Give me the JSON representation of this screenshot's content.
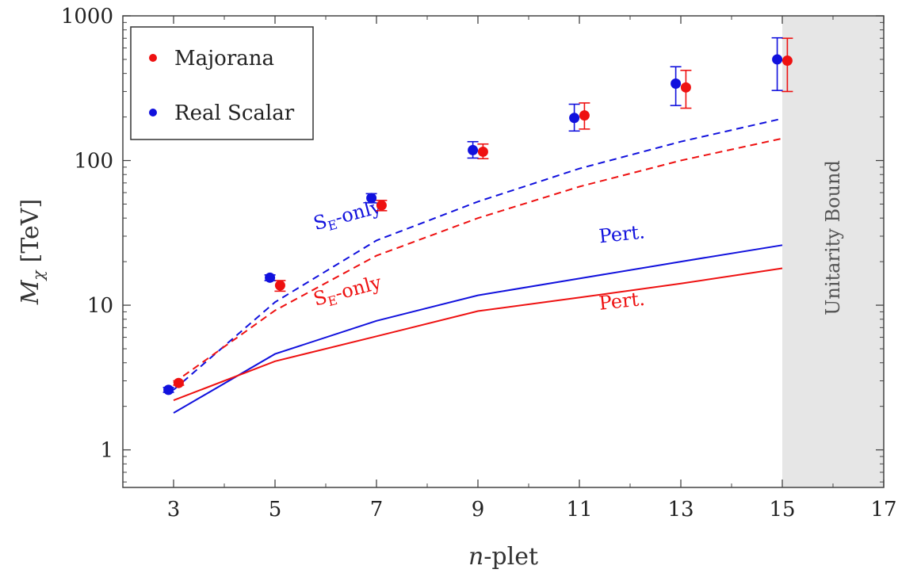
{
  "chart_data": {
    "type": "scatter",
    "xlabel_italic": "n",
    "xlabel_rest": "-plet",
    "ylabel_main": "M",
    "ylabel_sub": "χ",
    "ylabel_unit": "[TeV]",
    "xlim": [
      2,
      17
    ],
    "ylim": [
      0.55,
      1000
    ],
    "y_scale": "log",
    "x_ticks": [
      3,
      5,
      7,
      9,
      11,
      13,
      15,
      17
    ],
    "y_ticks": [
      1,
      10,
      100,
      1000
    ],
    "x_tick_labels": [
      "3",
      "5",
      "7",
      "9",
      "11",
      "13",
      "15",
      "17"
    ],
    "y_tick_labels": [
      "1",
      "10",
      "100",
      "1000"
    ],
    "colors": {
      "majorana": "#ee1111",
      "scalar": "#1111dd"
    },
    "legend": {
      "position": "top-left",
      "entries": [
        {
          "name": "Majorana",
          "color": "#ee1111"
        },
        {
          "name": "Real Scalar",
          "color": "#1111dd"
        }
      ]
    },
    "shaded_region": {
      "x_from": 15,
      "x_to": 17,
      "label": "Unitarity Bound",
      "color": "#e6e6e6"
    },
    "points": [
      {
        "name": "Majorana",
        "color": "#ee1111",
        "data": [
          {
            "x": 3.1,
            "y": 2.9,
            "lo": 2.8,
            "hi": 3.0
          },
          {
            "x": 5.1,
            "y": 13.7,
            "lo": 12.5,
            "hi": 14.8
          },
          {
            "x": 7.1,
            "y": 49,
            "lo": 45,
            "hi": 53
          },
          {
            "x": 9.1,
            "y": 115,
            "lo": 103,
            "hi": 130
          },
          {
            "x": 11.1,
            "y": 205,
            "lo": 165,
            "hi": 250
          },
          {
            "x": 13.1,
            "y": 320,
            "lo": 230,
            "hi": 420
          },
          {
            "x": 15.1,
            "y": 490,
            "lo": 300,
            "hi": 700
          }
        ]
      },
      {
        "name": "Real Scalar",
        "color": "#1111dd",
        "data": [
          {
            "x": 2.9,
            "y": 2.6,
            "lo": 2.5,
            "hi": 2.7
          },
          {
            "x": 4.9,
            "y": 15.5,
            "lo": 14.8,
            "hi": 16.2
          },
          {
            "x": 6.9,
            "y": 55,
            "lo": 51,
            "hi": 59
          },
          {
            "x": 8.9,
            "y": 118,
            "lo": 104,
            "hi": 135
          },
          {
            "x": 10.9,
            "y": 197,
            "lo": 160,
            "hi": 245
          },
          {
            "x": 12.9,
            "y": 340,
            "lo": 240,
            "hi": 445
          },
          {
            "x": 14.9,
            "y": 500,
            "lo": 305,
            "hi": 705
          }
        ]
      }
    ],
    "curves": [
      {
        "color": "#1111dd",
        "style": "dashed",
        "label_main": "S",
        "label_sub": "E",
        "label_rest": "-only",
        "label_x": 5.8,
        "label_y": 33,
        "x": [
          3,
          5,
          7,
          9,
          11,
          13,
          15
        ],
        "y": [
          2.6,
          10.5,
          28,
          52,
          88,
          135,
          195
        ]
      },
      {
        "color": "#ee1111",
        "style": "dashed",
        "label_main": "S",
        "label_sub": "E",
        "label_rest": "-only",
        "label_x": 5.8,
        "label_y": 9.9,
        "x": [
          3,
          5,
          7,
          9,
          11,
          13,
          15
        ],
        "y": [
          2.9,
          9.2,
          22,
          40,
          66,
          100,
          142
        ]
      },
      {
        "color": "#1111dd",
        "style": "solid",
        "label_main": "Pert.",
        "label_x": 11.4,
        "label_y": 27,
        "x": [
          3,
          5,
          7,
          9,
          11,
          13,
          15
        ],
        "y": [
          1.8,
          4.6,
          7.8,
          11.7,
          15.3,
          20.0,
          26.0
        ]
      },
      {
        "color": "#ee1111",
        "style": "solid",
        "label_main": "Pert.",
        "label_x": 11.4,
        "label_y": 9.3,
        "x": [
          3,
          5,
          7,
          9,
          11,
          13,
          15
        ],
        "y": [
          2.2,
          4.1,
          6.1,
          9.1,
          11.3,
          14.1,
          18.0
        ]
      }
    ]
  }
}
